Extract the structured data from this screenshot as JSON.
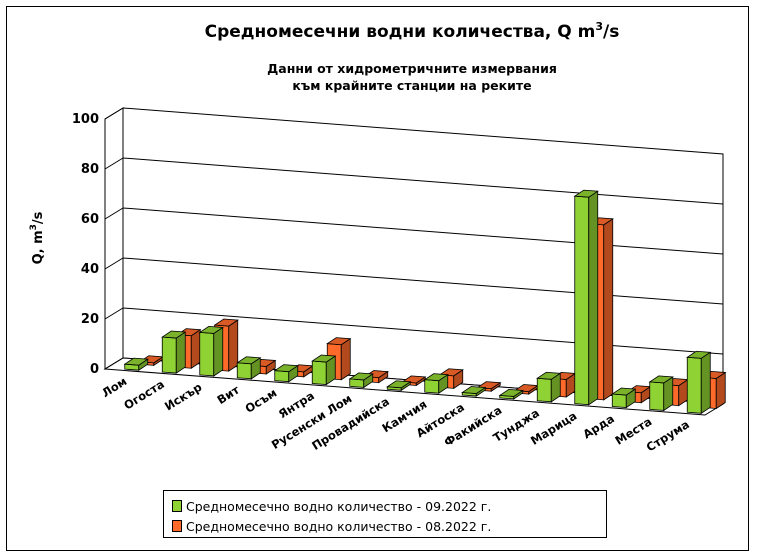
{
  "chart_data": {
    "type": "bar",
    "title_main": "Средномесечни водни количества, Q m",
    "title_sup": "3",
    "title_tail": "/s",
    "subtitle_line1": "Данни от хидрометричните измервания",
    "subtitle_line2": "към крайните станции на реките",
    "ylabel_main": "Q, m",
    "ylabel_sup": "3",
    "ylabel_tail": "/s",
    "ylim": [
      0,
      100
    ],
    "yticks": [
      "0",
      "20",
      "40",
      "60",
      "80",
      "100"
    ],
    "categories": [
      "Лом",
      "Огоста",
      "Искър",
      "Вит",
      "Осъм",
      "Янтра",
      "Русенски Лом",
      "Провадийска",
      "Камчия",
      "Айтоска",
      "Факийска",
      "Тунджа",
      "Марица",
      "Арда",
      "Места",
      "Струма"
    ],
    "series": [
      {
        "name": "Средномесечно водно количество - 09.2022 г.",
        "color": "#8fd233",
        "values": [
          2,
          14,
          17,
          6,
          4,
          9,
          3,
          1,
          5,
          1,
          1,
          9,
          83,
          5,
          11,
          22
        ]
      },
      {
        "name": "Средномесечно водно количество - 08.2022 г.",
        "color": "#ff6a2a",
        "values": [
          1,
          13,
          18,
          3,
          2,
          14,
          2,
          1,
          5,
          1,
          1,
          7,
          70,
          4,
          8,
          12
        ]
      }
    ],
    "grid": true,
    "legend_position": "bottom"
  }
}
